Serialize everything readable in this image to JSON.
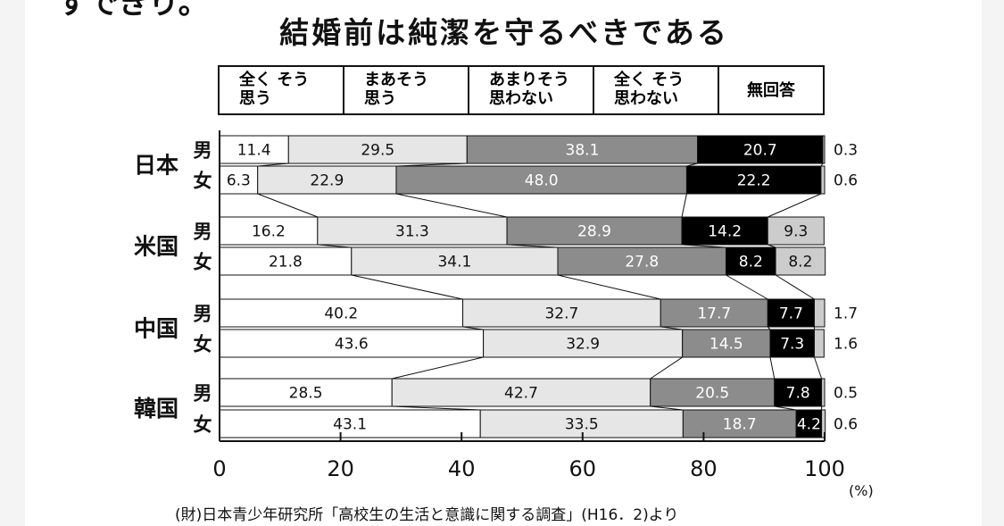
{
  "page": {
    "top_cut_text": "すできり。",
    "source": "(財)日本青少年研究所「高校生の生活と意識に関する調査」(H16．2)より",
    "unit": "(%)"
  },
  "chart_data": {
    "type": "bar",
    "orientation": "horizontal",
    "stacked": true,
    "title": "結婚前は純潔を守るべきである",
    "xlim": [
      0,
      100
    ],
    "x_ticks": [
      "0",
      "20",
      "40",
      "60",
      "80",
      "100"
    ],
    "legend_position": "top",
    "series": [
      {
        "name": "全く そう\n思う",
        "color": "#ffffff",
        "text_color": "#111111"
      },
      {
        "name": "まあそう\n思う",
        "color": "#e6e6e6",
        "text_color": "#111111"
      },
      {
        "name": "あまりそう\n思わない",
        "color": "#8c8c8c",
        "text_color": "#ffffff"
      },
      {
        "name": "全く そう\n思わない",
        "color": "#000000",
        "text_color": "#ffffff"
      },
      {
        "name": "無回答",
        "color": "#cccccc",
        "text_color": "#111111"
      }
    ],
    "groups": [
      {
        "name": "日本",
        "rows": [
          {
            "label": "男",
            "values": [
              11.4,
              29.5,
              38.1,
              20.7,
              0.3
            ],
            "labels": [
              "11.4",
              "29.5",
              "38.1",
              "20.7",
              "0.3"
            ]
          },
          {
            "label": "女",
            "values": [
              6.3,
              22.9,
              48.0,
              22.2,
              0.6
            ],
            "labels": [
              "6.3",
              "22.9",
              "48.0",
              "22.2",
              "0.6"
            ]
          }
        ]
      },
      {
        "name": "米国",
        "rows": [
          {
            "label": "男",
            "values": [
              16.2,
              31.3,
              28.9,
              14.2,
              9.3
            ],
            "labels": [
              "16.2",
              "31.3",
              "28.9",
              "14.2",
              "9.3"
            ]
          },
          {
            "label": "女",
            "values": [
              21.8,
              34.1,
              27.8,
              8.2,
              8.2
            ],
            "labels": [
              "21.8",
              "34.1",
              "27.8",
              "8.2",
              "8.2"
            ]
          }
        ]
      },
      {
        "name": "中国",
        "rows": [
          {
            "label": "男",
            "values": [
              40.2,
              32.7,
              17.7,
              7.7,
              1.7
            ],
            "labels": [
              "40.2",
              "32.7",
              "17.7",
              "7.7",
              "1.7"
            ]
          },
          {
            "label": "女",
            "values": [
              43.6,
              32.9,
              14.5,
              7.3,
              1.6
            ],
            "labels": [
              "43.6",
              "32.9",
              "14.5",
              "7.3",
              "1.6"
            ]
          }
        ]
      },
      {
        "name": "韓国",
        "rows": [
          {
            "label": "男",
            "values": [
              28.5,
              42.7,
              20.5,
              7.8,
              0.5
            ],
            "labels": [
              "28.5",
              "42.7",
              "20.5",
              "7.8",
              "0.5"
            ]
          },
          {
            "label": "女",
            "values": [
              43.1,
              33.5,
              18.7,
              4.2,
              0.6
            ],
            "labels": [
              "43.1",
              "33.5",
              "18.7",
              "4.2",
              "0.6"
            ]
          }
        ]
      }
    ]
  }
}
